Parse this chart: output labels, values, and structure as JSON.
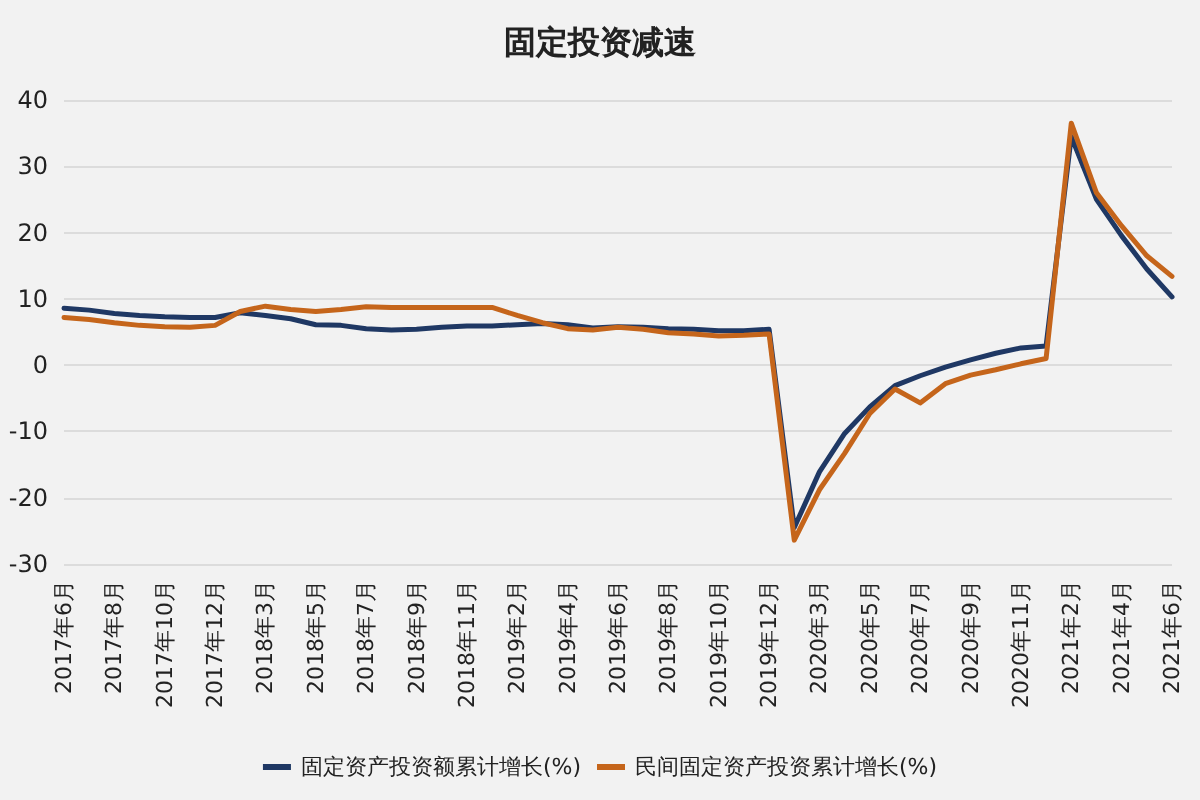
{
  "chart_data": {
    "type": "line",
    "title": "固定投资减速",
    "categories": [
      "2017年6月",
      null,
      "2017年8月",
      null,
      "2017年10月",
      null,
      "2017年12月",
      null,
      "2018年3月",
      null,
      "2018年5月",
      null,
      "2018年7月",
      null,
      "2018年9月",
      null,
      "2018年11月",
      null,
      "2019年2月",
      null,
      "2019年4月",
      null,
      "2019年6月",
      null,
      "2019年8月",
      null,
      "2019年10月",
      null,
      "2019年12月",
      null,
      "2020年3月",
      null,
      "2020年5月",
      null,
      "2020年7月",
      null,
      "2020年9月",
      null,
      "2020年11月",
      null,
      "2021年2月",
      null,
      "2021年4月",
      null,
      "2021年6月"
    ],
    "series": [
      {
        "name": "固定资产投资额累计增长(%)",
        "color": "#1f3864",
        "values": [
          8.6,
          8.3,
          7.8,
          7.5,
          7.3,
          7.2,
          7.2,
          7.9,
          7.5,
          7.0,
          6.1,
          6.0,
          5.5,
          5.3,
          5.4,
          5.7,
          5.9,
          5.9,
          6.1,
          6.3,
          6.1,
          5.6,
          5.8,
          5.7,
          5.5,
          5.4,
          5.2,
          5.2,
          5.4,
          -24.5,
          -16.1,
          -10.3,
          -6.3,
          -3.1,
          -1.6,
          -0.3,
          0.8,
          1.8,
          2.6,
          2.9,
          34.5,
          25,
          19.5,
          14.5,
          10.3
        ]
      },
      {
        "name": "民间固定资产投资累计增长(%)",
        "color": "#c5651b",
        "values": [
          7.2,
          6.9,
          6.4,
          6.0,
          5.8,
          5.7,
          6.0,
          8.1,
          8.9,
          8.4,
          8.1,
          8.4,
          8.8,
          8.7,
          8.7,
          8.7,
          8.7,
          8.7,
          7.5,
          6.4,
          5.5,
          5.3,
          5.7,
          5.4,
          4.9,
          4.7,
          4.4,
          4.5,
          4.7,
          -26.4,
          -18.8,
          -13.3,
          -7.3,
          -3.6,
          -5.7,
          -2.8,
          -1.5,
          -0.7,
          0.2,
          1.0,
          36.5,
          26,
          21,
          16.5,
          13.4
        ]
      }
    ],
    "ylim": [
      -30,
      40
    ],
    "yticks": [
      -30,
      -20,
      -10,
      0,
      10,
      20,
      30,
      40
    ],
    "grid": "y",
    "legend": "bottom",
    "marker": "none",
    "line_style": "solid"
  }
}
